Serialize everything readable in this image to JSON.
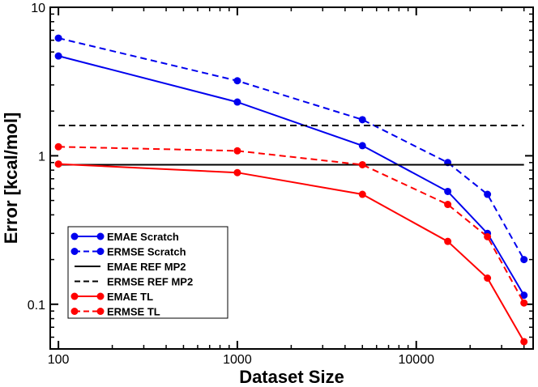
{
  "chart_data": {
    "type": "line",
    "xscale": "log",
    "yscale": "log",
    "xlabel": "Dataset Size",
    "ylabel": "Error [kcal/mol]",
    "xlim": [
      90,
      45000
    ],
    "ylim": [
      0.05,
      10
    ],
    "xticks": [
      {
        "value": 100,
        "label": "100"
      },
      {
        "value": 1000,
        "label": "1000"
      },
      {
        "value": 10000,
        "label": "10000"
      }
    ],
    "yticks": [
      {
        "value": 0.1,
        "label": "0.1"
      },
      {
        "value": 1,
        "label": "1"
      },
      {
        "value": 10,
        "label": "10"
      }
    ],
    "series": [
      {
        "name": "EMAE Scratch",
        "color": "#0000ee",
        "dash": "solid",
        "markers": true,
        "x": [
          100,
          1000,
          5000,
          15000,
          25000,
          40000
        ],
        "y": [
          4.7,
          2.3,
          1.17,
          0.575,
          0.3,
          0.115
        ]
      },
      {
        "name": "ERMSE Scratch",
        "color": "#0000ee",
        "dash": "dashed",
        "markers": true,
        "x": [
          100,
          1000,
          5000,
          15000,
          25000,
          40000
        ],
        "y": [
          6.2,
          3.2,
          1.75,
          0.9,
          0.55,
          0.2
        ]
      },
      {
        "name": "EMAE REF MP2",
        "color": "#000000",
        "dash": "solid",
        "markers": false,
        "x": [
          100,
          40000
        ],
        "y": [
          0.87,
          0.87
        ]
      },
      {
        "name": "ERMSE REF MP2",
        "color": "#000000",
        "dash": "dashed",
        "markers": false,
        "x": [
          100,
          40000
        ],
        "y": [
          1.6,
          1.6
        ]
      },
      {
        "name": "EMAE TL",
        "color": "#ff0000",
        "dash": "solid",
        "markers": true,
        "x": [
          100,
          1000,
          5000,
          15000,
          25000,
          40000
        ],
        "y": [
          0.88,
          0.77,
          0.55,
          0.265,
          0.15,
          0.056
        ]
      },
      {
        "name": "ERMSE TL",
        "color": "#ff0000",
        "dash": "dashed",
        "markers": true,
        "x": [
          100,
          1000,
          5000,
          15000,
          25000,
          40000
        ],
        "y": [
          1.15,
          1.08,
          0.87,
          0.47,
          0.285,
          0.102
        ]
      }
    ],
    "legend": "bottom-left"
  }
}
